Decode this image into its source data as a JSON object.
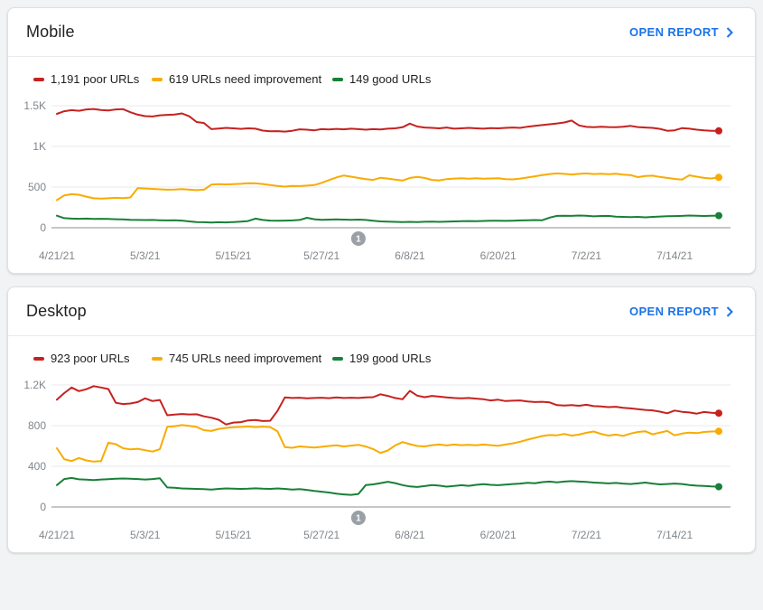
{
  "page": {
    "background": "#f1f3f4",
    "product_context": "Core Web Vitals summary"
  },
  "colors": {
    "poor": "#c5221f",
    "needs_improvement": "#f9ab00",
    "good": "#188038",
    "link": "#1a73e8",
    "axis_text": "#80868b",
    "gridline": "#e8eaed",
    "zero_axis": "#8a8f94",
    "marker": "#9aa0a6"
  },
  "cards": [
    {
      "title": "Mobile",
      "open_report_label": "OPEN REPORT",
      "legend": [
        {
          "label": "1,191 poor URLs",
          "color": "#c5221f"
        },
        {
          "label": "619 URLs need improvement",
          "color": "#f9ab00"
        },
        {
          "label": "149 good URLs",
          "color": "#188038"
        }
      ],
      "chart_data": {
        "type": "line",
        "title": "Mobile Core Web Vitals URL counts over time",
        "x_start": "4/21/21",
        "x_end": "7/20/21",
        "x_tick_labels": [
          "4/21/21",
          "5/3/21",
          "5/15/21",
          "5/27/21",
          "6/8/21",
          "6/20/21",
          "7/2/21",
          "7/14/21"
        ],
        "x_tick_day_indices": [
          0,
          12,
          24,
          36,
          48,
          60,
          72,
          84
        ],
        "y_ticks": [
          {
            "value": 0,
            "label": "0"
          },
          {
            "value": 500,
            "label": "500"
          },
          {
            "value": 1000,
            "label": "1K"
          },
          {
            "value": 1500,
            "label": "1.5K"
          }
        ],
        "ylim": [
          0,
          1500
        ],
        "grid": true,
        "annotation_marker": {
          "label": "1",
          "day_index": 41
        },
        "series": [
          {
            "name": "poor URLs",
            "color": "#c5221f",
            "current": 1191,
            "values": [
              1400,
              1432,
              1445,
              1438,
              1455,
              1460,
              1448,
              1442,
              1455,
              1458,
              1420,
              1390,
              1372,
              1368,
              1382,
              1388,
              1392,
              1405,
              1370,
              1300,
              1288,
              1212,
              1220,
              1228,
              1222,
              1215,
              1222,
              1218,
              1195,
              1185,
              1188,
              1182,
              1192,
              1210,
              1205,
              1198,
              1212,
              1208,
              1215,
              1210,
              1218,
              1212,
              1205,
              1212,
              1208,
              1218,
              1222,
              1235,
              1280,
              1245,
              1232,
              1228,
              1222,
              1232,
              1218,
              1222,
              1228,
              1222,
              1218,
              1225,
              1222,
              1228,
              1232,
              1228,
              1242,
              1252,
              1262,
              1272,
              1282,
              1295,
              1318,
              1258,
              1240,
              1235,
              1242,
              1238,
              1235,
              1242,
              1252,
              1238,
              1232,
              1228,
              1215,
              1192,
              1198,
              1225,
              1218,
              1205,
              1198,
              1192,
              1191
            ]
          },
          {
            "name": "URLs need improvement",
            "color": "#f9ab00",
            "current": 619,
            "values": [
              340,
              398,
              412,
              405,
              382,
              362,
              358,
              362,
              368,
              365,
              372,
              488,
              482,
              478,
              472,
              468,
              470,
              475,
              468,
              462,
              468,
              530,
              535,
              532,
              536,
              540,
              548,
              545,
              538,
              525,
              515,
              505,
              515,
              512,
              518,
              525,
              552,
              585,
              618,
              642,
              628,
              612,
              598,
              588,
              615,
              605,
              592,
              580,
              612,
              625,
              612,
              588,
              582,
              598,
              605,
              608,
              602,
              608,
              602,
              606,
              608,
              598,
              594,
              605,
              618,
              632,
              648,
              660,
              668,
              662,
              655,
              662,
              668,
              660,
              665,
              658,
              664,
              652,
              648,
              622,
              635,
              640,
              625,
              612,
              600,
              592,
              645,
              628,
              612,
              606,
              619
            ]
          },
          {
            "name": "good URLs",
            "color": "#188038",
            "current": 149,
            "values": [
              148,
              118,
              112,
              110,
              112,
              108,
              110,
              108,
              105,
              102,
              98,
              96,
              94,
              95,
              92,
              90,
              92,
              88,
              78,
              70,
              68,
              65,
              68,
              66,
              70,
              75,
              82,
              112,
              95,
              88,
              85,
              88,
              90,
              95,
              122,
              105,
              98,
              100,
              102,
              100,
              98,
              100,
              95,
              85,
              78,
              75,
              72,
              70,
              72,
              70,
              73,
              75,
              72,
              75,
              78,
              80,
              82,
              80,
              83,
              85,
              86,
              84,
              87,
              90,
              92,
              94,
              92,
              125,
              145,
              148,
              146,
              150,
              148,
              140,
              144,
              146,
              136,
              133,
              130,
              133,
              128,
              133,
              138,
              141,
              143,
              146,
              150,
              147,
              144,
              147,
              149
            ]
          }
        ]
      }
    },
    {
      "title": "Desktop",
      "open_report_label": "OPEN REPORT",
      "legend": [
        {
          "label": "923 poor URLs",
          "color": "#c5221f"
        },
        {
          "label": "745 URLs need improvement",
          "color": "#f9ab00"
        },
        {
          "label": "199 good URLs",
          "color": "#188038"
        }
      ],
      "chart_data": {
        "type": "line",
        "title": "Desktop Core Web Vitals URL counts over time",
        "x_start": "4/21/21",
        "x_end": "7/20/21",
        "x_tick_labels": [
          "4/21/21",
          "5/3/21",
          "5/15/21",
          "5/27/21",
          "6/8/21",
          "6/20/21",
          "7/2/21",
          "7/14/21"
        ],
        "x_tick_day_indices": [
          0,
          12,
          24,
          36,
          48,
          60,
          72,
          84
        ],
        "y_ticks": [
          {
            "value": 0,
            "label": "0"
          },
          {
            "value": 400,
            "label": "400"
          },
          {
            "value": 800,
            "label": "800"
          },
          {
            "value": 1200,
            "label": "1.2K"
          }
        ],
        "ylim": [
          0,
          1200
        ],
        "grid": true,
        "annotation_marker": {
          "label": "1",
          "day_index": 41
        },
        "series": [
          {
            "name": "poor URLs",
            "color": "#c5221f",
            "current": 923,
            "values": [
              1055,
              1120,
              1175,
              1140,
              1158,
              1188,
              1175,
              1160,
              1025,
              1012,
              1018,
              1032,
              1068,
              1042,
              1052,
              902,
              908,
              915,
              910,
              912,
              892,
              878,
              858,
              812,
              830,
              835,
              852,
              856,
              845,
              848,
              945,
              1078,
              1072,
              1075,
              1068,
              1072,
              1075,
              1070,
              1078,
              1072,
              1075,
              1072,
              1078,
              1080,
              1108,
              1092,
              1072,
              1060,
              1142,
              1095,
              1080,
              1092,
              1085,
              1078,
              1072,
              1068,
              1072,
              1066,
              1060,
              1048,
              1055,
              1042,
              1045,
              1048,
              1038,
              1032,
              1035,
              1028,
              1002,
              998,
              1002,
              996,
              1005,
              992,
              988,
              982,
              986,
              976,
              970,
              962,
              955,
              950,
              938,
              922,
              948,
              936,
              930,
              918,
              934,
              926,
              923
            ]
          },
          {
            "name": "URLs need improvement",
            "color": "#f9ab00",
            "current": 745,
            "values": [
              578,
              470,
              452,
              482,
              458,
              446,
              452,
              632,
              618,
              578,
              566,
              572,
              558,
              545,
              568,
              788,
              795,
              805,
              798,
              788,
              756,
              748,
              768,
              778,
              785,
              788,
              792,
              786,
              790,
              786,
              745,
              588,
              582,
              596,
              590,
              585,
              592,
              600,
              606,
              596,
              604,
              612,
              595,
              570,
              532,
              556,
              605,
              638,
              618,
              600,
              596,
              608,
              614,
              605,
              614,
              608,
              612,
              606,
              614,
              608,
              602,
              614,
              626,
              642,
              662,
              680,
              698,
              708,
              705,
              718,
              702,
              712,
              730,
              742,
              718,
              702,
              712,
              700,
              722,
              738,
              745,
              715,
              732,
              748,
              705,
              722,
              732,
              726,
              738,
              742,
              745
            ]
          },
          {
            "name": "good URLs",
            "color": "#188038",
            "current": 199,
            "values": [
              215,
              275,
              285,
              272,
              268,
              265,
              270,
              274,
              278,
              280,
              278,
              275,
              270,
              275,
              282,
              192,
              188,
              182,
              180,
              178,
              175,
              172,
              178,
              182,
              180,
              178,
              180,
              183,
              180,
              178,
              182,
              178,
              172,
              176,
              168,
              158,
              150,
              142,
              132,
              124,
              119,
              128,
              215,
              222,
              235,
              248,
              235,
              215,
              202,
              196,
              205,
              215,
              210,
              200,
              206,
              214,
              208,
              218,
              224,
              218,
              214,
              220,
              226,
              230,
              238,
              234,
              244,
              250,
              242,
              250,
              254,
              250,
              246,
              240,
              236,
              232,
              236,
              230,
              226,
              232,
              240,
              230,
              222,
              226,
              230,
              226,
              216,
              210,
              206,
              202,
              199
            ]
          }
        ]
      }
    }
  ]
}
